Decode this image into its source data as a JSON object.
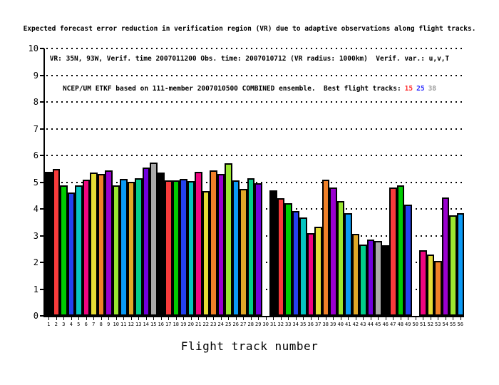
{
  "title": {
    "line1": "Expected forecast error reduction in verification region (VR) due to adaptive observations along flight tracks.",
    "line2": "VR: 35N, 93W, Verif. time 2007011200 Obs. time: 2007010712 (VR radius: 1000km)  Verif. var.: u,v,T",
    "line3_prefix": "NCEP/UM ETKF based on 111-member 2007010500 COMBINED ensemble.  Best flight tracks:",
    "best_tracks": [
      {
        "label": "15",
        "color": "#ff2a2a"
      },
      {
        "label": "25",
        "color": "#2a2aff"
      },
      {
        "label": "38",
        "color": "#9a9a9a"
      }
    ]
  },
  "chart_data": {
    "type": "bar",
    "xlabel": "Flight track number",
    "ylabel": "",
    "ylim": [
      0,
      10
    ],
    "yticks": [
      0,
      1,
      2,
      3,
      4,
      5,
      6,
      7,
      8,
      9,
      10
    ],
    "grid": "dotted horizontal line at every integer y value",
    "legend_position": "none",
    "categories": [
      1,
      2,
      3,
      4,
      5,
      6,
      7,
      8,
      9,
      10,
      11,
      12,
      13,
      14,
      15,
      16,
      17,
      18,
      19,
      20,
      21,
      22,
      23,
      24,
      25,
      26,
      27,
      28,
      29,
      30,
      31,
      32,
      33,
      34,
      35,
      36,
      37,
      38,
      39,
      40,
      41,
      42,
      43,
      44,
      45,
      46,
      47,
      48,
      49,
      50,
      51,
      52,
      53,
      54,
      55,
      56
    ],
    "values": [
      5.4,
      5.5,
      4.88,
      4.62,
      4.88,
      5.1,
      5.36,
      5.32,
      5.44,
      4.88,
      5.12,
      5.02,
      5.16,
      5.56,
      5.74,
      5.36,
      5.07,
      5.07,
      5.13,
      5.03,
      5.4,
      4.66,
      5.43,
      5.31,
      5.7,
      5.06,
      4.76,
      5.16,
      4.97,
      0,
      4.7,
      4.4,
      4.21,
      3.91,
      3.68,
      3.1,
      3.34,
      5.09,
      4.81,
      4.3,
      3.84,
      3.06,
      2.66,
      2.85,
      2.8,
      2.65,
      4.81,
      4.88,
      4.17,
      0,
      2.45,
      2.29,
      2.06,
      4.42,
      3.77,
      3.84
    ],
    "palette": [
      "#000000",
      "#f93b3b",
      "#00cc00",
      "#2441f0",
      "#06c4c0",
      "#f00580",
      "#e5dc35",
      "#f08028",
      "#9a00cf",
      "#9ae630",
      "#0a9af5",
      "#e0a828",
      "#02cc8a",
      "#7000dd",
      "#a9a9a9"
    ],
    "color_rule": "bar i uses palette[(i-1) mod 15]; bars 30 and 50 have zero height (not drawn)",
    "axis_color": "#000000"
  }
}
